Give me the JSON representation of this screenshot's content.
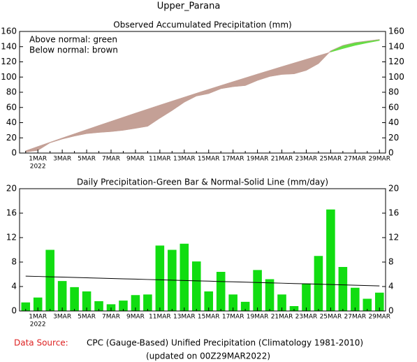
{
  "title": "Upper_Parana",
  "chart_data": [
    {
      "type": "area",
      "title": "Observed Accumulated Precipitation (mm)",
      "annotations": [
        "Above normal: green",
        "Below normal: brown"
      ],
      "categories": [
        null,
        "1MAR",
        null,
        "3MAR",
        null,
        "5MAR",
        null,
        "7MAR",
        null,
        "9MAR",
        null,
        "11MAR",
        null,
        "13MAR",
        null,
        "15MAR",
        null,
        "17MAR",
        null,
        "19MAR",
        null,
        "21MAR",
        null,
        "23MAR",
        null,
        "25MAR",
        null,
        "27MAR",
        null,
        "29MAR"
      ],
      "year_label": "2022",
      "observed": {
        "color": "#c4a096",
        "values": [
          1.4,
          3.6,
          13.6,
          18.5,
          22.4,
          25.6,
          27.2,
          28.3,
          30.0,
          32.6,
          35.3,
          46.0,
          56.0,
          67.0,
          75.1,
          78.3,
          84.7,
          87.4,
          88.9,
          95.6,
          100.8,
          103.5,
          104.3,
          108.8,
          117.8,
          134.4,
          141.6,
          145.4,
          147.4,
          149.4
        ]
      },
      "normal": {
        "color": "#c4a096",
        "values": [
          3,
          8.7,
          14.3,
          19.9,
          25.4,
          30.9,
          36.4,
          41.8,
          47.2,
          52.6,
          57.9,
          63.2,
          68.4,
          73.6,
          78.8,
          83.9,
          89.0,
          94.0,
          99.0,
          104.0,
          108.9,
          113.8,
          118.6,
          123.4,
          128.2,
          132.9,
          137.4,
          141.6,
          145.0,
          148.0
        ]
      },
      "above_color": "#66dd44",
      "below_color": "#c4a096",
      "ylim": [
        0,
        160
      ],
      "yticks": [
        0,
        20,
        40,
        60,
        80,
        100,
        120,
        140,
        160
      ]
    },
    {
      "type": "bar",
      "title": "Daily Precipitation-Green Bar & Normal-Solid Line (mm/day)",
      "categories": [
        null,
        "1MAR",
        null,
        "3MAR",
        null,
        "5MAR",
        null,
        "7MAR",
        null,
        "9MAR",
        null,
        "11MAR",
        null,
        "13MAR",
        null,
        "15MAR",
        null,
        "17MAR",
        null,
        "19MAR",
        null,
        "21MAR",
        null,
        "23MAR",
        null,
        "25MAR",
        null,
        "27MAR",
        null,
        "29MAR"
      ],
      "year_label": "2022",
      "observed": {
        "color": "#11dd11",
        "values": [
          1.4,
          2.2,
          10.0,
          4.9,
          3.9,
          3.2,
          1.6,
          1.1,
          1.7,
          2.6,
          2.7,
          10.7,
          10.0,
          11.0,
          8.1,
          3.2,
          6.4,
          2.7,
          1.5,
          6.7,
          5.2,
          2.7,
          0.8,
          4.5,
          9.0,
          16.6,
          7.2,
          3.8,
          2.0,
          3.0
        ]
      },
      "normal": {
        "color": "#000000",
        "values": [
          5.7,
          5.65,
          5.59,
          5.54,
          5.48,
          5.43,
          5.37,
          5.32,
          5.26,
          5.21,
          5.15,
          5.1,
          5.04,
          4.99,
          4.93,
          4.88,
          4.82,
          4.77,
          4.71,
          4.66,
          4.6,
          4.55,
          4.49,
          4.44,
          4.38,
          4.33,
          4.27,
          4.22,
          4.16,
          4.1
        ]
      },
      "ylim": [
        0,
        20
      ],
      "yticks": [
        0,
        4,
        8,
        12,
        16,
        20
      ]
    }
  ],
  "footer": {
    "source_label": "Data Source:",
    "source": "CPC (Gauge-Based) Unified Precipitation (Climatology 1981-2010)",
    "updated": "(updated on 00Z29MAR2022)"
  }
}
